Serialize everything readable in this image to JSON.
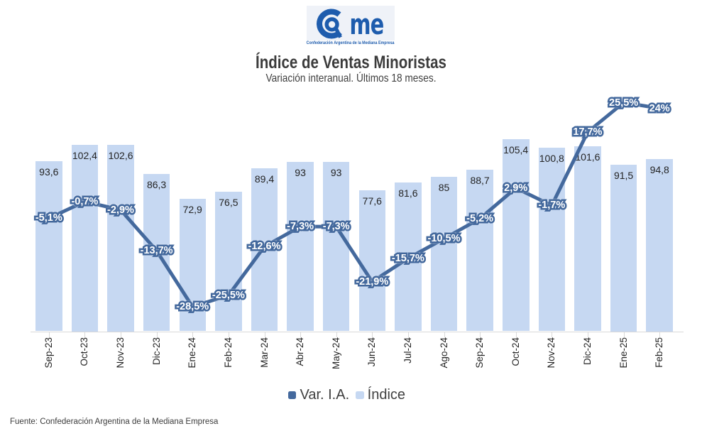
{
  "logo": {
    "name": "CAME",
    "caption": "Confederación Argentina de la Mediana Empresa",
    "color": "#1e5cad"
  },
  "header": {
    "title": "Índice de Ventas Minoristas",
    "subtitle": "Variación interanual. Últimos 18 meses."
  },
  "legend": {
    "line_label": "Var. I.A.",
    "bar_label": "Índice"
  },
  "footer": {
    "source": "Fuente: Confederación Argentina de la Mediana Empresa"
  },
  "colors": {
    "bar_fill": "#c6d8f2",
    "line": "#44699d",
    "line_label_text": "#ffffff",
    "bar_label_text": "#242424",
    "axis": "#d9d9d9",
    "text": "#3b3b3b"
  },
  "chart_data": {
    "type": "combo-bar-line",
    "categories": [
      "Sep-23",
      "Oct-23",
      "Nov-23",
      "Dic-23",
      "Ene-24",
      "Feb-24",
      "Mar-24",
      "Abr-24",
      "May-24",
      "Jun-24",
      "Jul-24",
      "Ago-24",
      "Sep-24",
      "Oct-24",
      "Nov-24",
      "Dic-24",
      "Ene-25",
      "Feb-25"
    ],
    "series": [
      {
        "name": "Índice",
        "type": "bar",
        "axis": "primary",
        "values": [
          93.6,
          102.4,
          102.6,
          86.3,
          72.9,
          76.5,
          89.4,
          93,
          93,
          77.6,
          81.6,
          85,
          88.7,
          105.4,
          100.8,
          101.6,
          91.5,
          94.8
        ],
        "labels": [
          "93,6",
          "102,4",
          "102,6",
          "86,3",
          "72,9",
          "76,5",
          "89,4",
          "93",
          "93",
          "77,6",
          "81,6",
          "85",
          "88,7",
          "105,4",
          "100,8",
          "101,6",
          "91,5",
          "94,8"
        ]
      },
      {
        "name": "Var. I.A.",
        "type": "line",
        "axis": "secondary",
        "values": [
          -5.1,
          -0.7,
          -2.9,
          -13.7,
          -28.5,
          -25.5,
          -12.6,
          -7.3,
          -7.3,
          -21.9,
          -15.7,
          -10.5,
          -5.2,
          2.9,
          -1.7,
          17.7,
          25.5,
          24
        ],
        "labels": [
          "-5,1%",
          "-0,7%",
          "-2,9%",
          "-13,7%",
          "-28,5%",
          "-25,5%",
          "-12,6%",
          "-7,3%",
          "-7,3%",
          "-21,9%",
          "-15,7%",
          "-10,5%",
          "-5,2%",
          "2,9%",
          "-1,7%",
          "17,7%",
          "25,5%",
          "24%"
        ]
      }
    ],
    "title": "Índice de Ventas Minoristas",
    "subtitle": "Variación interanual. Últimos 18 meses.",
    "xlabel": "",
    "ylabel": "",
    "primary_ylim": [
      0,
      130
    ],
    "secondary_ylim": [
      -35,
      27.6
    ],
    "grid": false,
    "legend_position": "bottom"
  }
}
